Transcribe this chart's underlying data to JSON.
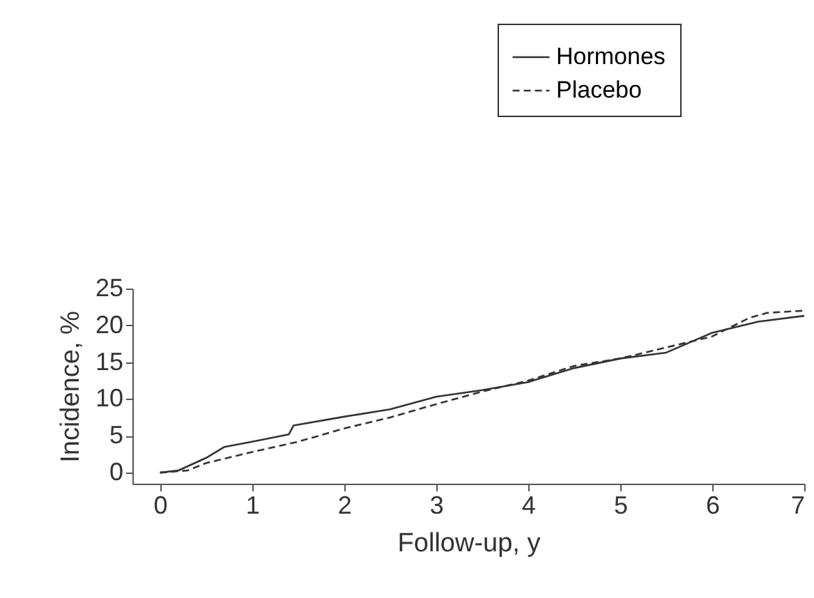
{
  "chart_data": {
    "type": "line",
    "xlabel": "Follow-up, y",
    "ylabel": "Incidence, %",
    "xlim": [
      -0.3,
      7
    ],
    "ylim": [
      -1.5,
      25
    ],
    "xticks": [
      0,
      1,
      2,
      3,
      4,
      5,
      6,
      7
    ],
    "yticks": [
      0,
      5,
      10,
      15,
      20,
      25
    ],
    "grid": false,
    "legend": "top right",
    "series": [
      {
        "name": "Hormones",
        "color": "#333333",
        "line_style": "solid",
        "x": [
          0,
          0.2,
          0.5,
          0.7,
          1,
          1.4,
          1.45,
          2,
          2.5,
          3,
          3.5,
          4,
          4.5,
          5,
          5.5,
          6,
          6.5,
          7
        ],
        "values": [
          0,
          0.3,
          2,
          3.5,
          4.2,
          5.2,
          6.4,
          7.6,
          8.6,
          10.3,
          11.2,
          12.3,
          14.2,
          15.5,
          16.3,
          19,
          20.5,
          21.3
        ]
      },
      {
        "name": "Placebo",
        "color": "#333333",
        "line_style": "dashed",
        "x": [
          0,
          0.3,
          0.5,
          1,
          1.5,
          2,
          2.5,
          3,
          3.5,
          4,
          4.5,
          5,
          5.5,
          6,
          6.4,
          6.6,
          7
        ],
        "values": [
          0,
          0.3,
          1.3,
          2.8,
          4.2,
          6,
          7.5,
          9.3,
          11,
          12.5,
          14.5,
          15.5,
          17,
          18.5,
          21,
          21.7,
          22
        ]
      }
    ]
  }
}
